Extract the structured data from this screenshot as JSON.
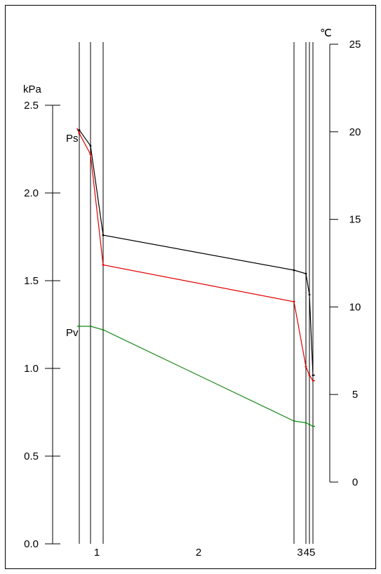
{
  "chart_data": {
    "type": "line",
    "left_axis": {
      "unit": "kPa",
      "ylim": [
        0,
        2.5
      ],
      "ticks": [
        0.0,
        0.5,
        1.0,
        1.5,
        2.0,
        2.5
      ],
      "tick_labels": [
        "0.0",
        "0.5",
        "1.0",
        "1.5",
        "2.0",
        "2.5"
      ]
    },
    "right_axis": {
      "unit": "℃",
      "ylim": [
        0,
        25
      ],
      "ticks": [
        0,
        5,
        10,
        15,
        20,
        25
      ],
      "tick_labels": [
        "0",
        "5",
        "10",
        "15",
        "20",
        "25"
      ]
    },
    "layer_boundaries": [
      0,
      1,
      2,
      3,
      4,
      5,
      6
    ],
    "layer_labels": [
      {
        "text": "1",
        "x": 1.5
      },
      {
        "text": "2",
        "x": 2.5
      },
      {
        "text": "3",
        "x": 3.5
      },
      {
        "text": "45",
        "x": 5
      }
    ],
    "series": [
      {
        "name": "",
        "axis": "right",
        "color": "#000000",
        "x": [
          -0.2,
          0,
          1,
          2,
          3,
          4,
          5,
          6,
          6.6
        ],
        "y": [
          20.1,
          20.1,
          19.2,
          14.1,
          12.1,
          11.9,
          10.7,
          6.1,
          6.1
        ]
      },
      {
        "name": "Ps",
        "axis": "left",
        "color": "#e00000",
        "x": [
          -0.2,
          0,
          1,
          2,
          3,
          4,
          5,
          6,
          6.6
        ],
        "y": [
          2.37,
          2.34,
          2.22,
          1.59,
          1.38,
          1.01,
          0.96,
          0.93,
          0.93
        ]
      },
      {
        "name": "Pv",
        "axis": "left",
        "color": "#1a8a1a",
        "x": [
          -0.2,
          0,
          1,
          2,
          3,
          4,
          5,
          6,
          6.6
        ],
        "y": [
          1.24,
          1.24,
          1.24,
          1.22,
          0.7,
          0.69,
          0.68,
          0.67,
          0.67
        ]
      }
    ],
    "labels": {
      "ps": "Ps",
      "pv": "Pv"
    }
  }
}
